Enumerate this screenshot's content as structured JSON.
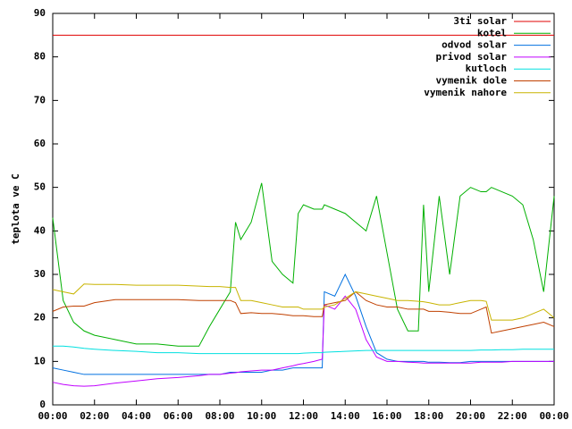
{
  "chart_data": {
    "type": "line",
    "y_label": "teplota ve C",
    "x": [
      0,
      0.5,
      1,
      1.5,
      2,
      3,
      4,
      5,
      6,
      7,
      7.5,
      8,
      8.5,
      8.75,
      9,
      9.5,
      10,
      10.5,
      11,
      11.5,
      11.75,
      12,
      12.5,
      12.9,
      13,
      13.5,
      14,
      14.5,
      15,
      15.5,
      16,
      16.5,
      17,
      17.5,
      17.75,
      18,
      18.5,
      19,
      19.5,
      20,
      20.5,
      20.75,
      21,
      21.5,
      22,
      22.5,
      23,
      23.5,
      24
    ],
    "xlim": [
      0,
      24
    ],
    "xticks": [
      {
        "value": 0,
        "label": "00:00"
      },
      {
        "value": 2,
        "label": "02:00"
      },
      {
        "value": 4,
        "label": "04:00"
      },
      {
        "value": 6,
        "label": "06:00"
      },
      {
        "value": 8,
        "label": "08:00"
      },
      {
        "value": 10,
        "label": "10:00"
      },
      {
        "value": 12,
        "label": "12:00"
      },
      {
        "value": 14,
        "label": "14:00"
      },
      {
        "value": 16,
        "label": "16:00"
      },
      {
        "value": 18,
        "label": "18:00"
      },
      {
        "value": 20,
        "label": "20:00"
      },
      {
        "value": 22,
        "label": "22:00"
      },
      {
        "value": 24,
        "label": "00:00"
      }
    ],
    "ylim": [
      0,
      90
    ],
    "yticks": [
      0,
      10,
      20,
      30,
      40,
      50,
      60,
      70,
      80,
      90
    ],
    "legend": "top-right",
    "series": [
      {
        "name": "3ti solar",
        "color": "#e00000",
        "values": [
          85,
          85,
          85,
          85,
          85,
          85,
          85,
          85,
          85,
          85,
          85,
          85,
          85,
          85,
          85,
          85,
          85,
          85,
          85,
          85,
          85,
          85,
          85,
          85,
          85,
          85,
          85,
          85,
          85,
          85,
          85,
          85,
          85,
          85,
          85,
          85,
          85,
          85,
          85,
          85,
          85,
          85,
          85,
          85,
          85,
          85,
          85,
          85,
          85
        ]
      },
      {
        "name": "kotel",
        "color": "#00b000",
        "values": [
          43,
          24,
          19,
          17,
          16,
          15,
          14,
          14,
          13.5,
          13.5,
          18,
          22,
          26,
          42,
          38,
          42,
          51,
          33,
          30,
          28,
          44,
          46,
          45,
          45,
          46,
          45,
          44,
          42,
          40,
          48,
          35,
          22,
          17,
          17,
          46,
          26,
          48,
          30,
          48,
          50,
          49,
          49,
          50,
          49,
          48,
          46,
          38,
          26,
          48
        ]
      },
      {
        "name": "odvod solar",
        "color": "#0070e0",
        "values": [
          8.5,
          8,
          7.5,
          7,
          7,
          7,
          7,
          7,
          7,
          7,
          7,
          7,
          7.5,
          7.5,
          7.5,
          7.5,
          7.5,
          8,
          8,
          8.5,
          8.5,
          8.5,
          8.5,
          8.5,
          26,
          25,
          30,
          25,
          18,
          12,
          10.5,
          10,
          10,
          10,
          10,
          9.8,
          9.8,
          9.7,
          9.7,
          10,
          10,
          10,
          10,
          10,
          10,
          10,
          10,
          10,
          10
        ]
      },
      {
        "name": "privod solar",
        "color": "#c000ff",
        "values": [
          5.2,
          4.7,
          4.4,
          4.3,
          4.4,
          5,
          5.5,
          6,
          6.3,
          6.7,
          7,
          7,
          7.3,
          7.4,
          7.6,
          7.8,
          8,
          8,
          8.5,
          9,
          9.3,
          9.5,
          10,
          10.5,
          23,
          22,
          25,
          22,
          15,
          11,
          10,
          10,
          9.8,
          9.7,
          9.6,
          9.6,
          9.6,
          9.6,
          9.6,
          9.6,
          9.8,
          9.8,
          9.8,
          9.8,
          10,
          10,
          10,
          10,
          10
        ]
      },
      {
        "name": "kutloch",
        "color": "#00e0e0",
        "values": [
          13.5,
          13.5,
          13.3,
          13,
          12.8,
          12.5,
          12.3,
          12,
          12,
          11.8,
          11.8,
          11.8,
          11.8,
          11.8,
          11.8,
          11.8,
          11.8,
          11.8,
          11.8,
          11.8,
          11.8,
          11.9,
          12,
          12,
          12.1,
          12.2,
          12.3,
          12.4,
          12.5,
          12.5,
          12.5,
          12.5,
          12.5,
          12.5,
          12.5,
          12.5,
          12.5,
          12.5,
          12.5,
          12.5,
          12.6,
          12.6,
          12.6,
          12.7,
          12.7,
          12.8,
          12.8,
          12.8,
          12.8
        ]
      },
      {
        "name": "vymenik dole",
        "color": "#c04000",
        "values": [
          21.5,
          22.5,
          22.7,
          22.7,
          23.5,
          24.2,
          24.2,
          24.2,
          24.2,
          24,
          24,
          24,
          24,
          23.5,
          21,
          21.2,
          21,
          21,
          20.8,
          20.5,
          20.5,
          20.5,
          20.3,
          20.3,
          23,
          23.5,
          24,
          26,
          24,
          23,
          22.5,
          22.5,
          22,
          22,
          22,
          21.5,
          21.5,
          21.3,
          21,
          21,
          22,
          22.5,
          16.5,
          17,
          17.5,
          18,
          18.5,
          19,
          18
        ]
      },
      {
        "name": "vymenik nahore",
        "color": "#c8b400",
        "values": [
          26.5,
          26,
          25.5,
          27.8,
          27.7,
          27.7,
          27.5,
          27.5,
          27.5,
          27.3,
          27.2,
          27.2,
          27,
          27,
          24,
          24,
          23.5,
          23,
          22.5,
          22.5,
          22.5,
          22,
          22,
          22,
          22.5,
          23,
          24.5,
          26,
          25.5,
          25,
          24.5,
          24,
          24,
          23.8,
          23.7,
          23.5,
          23,
          23,
          23.5,
          24,
          24,
          23.8,
          19.5,
          19.5,
          19.5,
          20,
          21,
          22,
          20
        ]
      }
    ]
  }
}
